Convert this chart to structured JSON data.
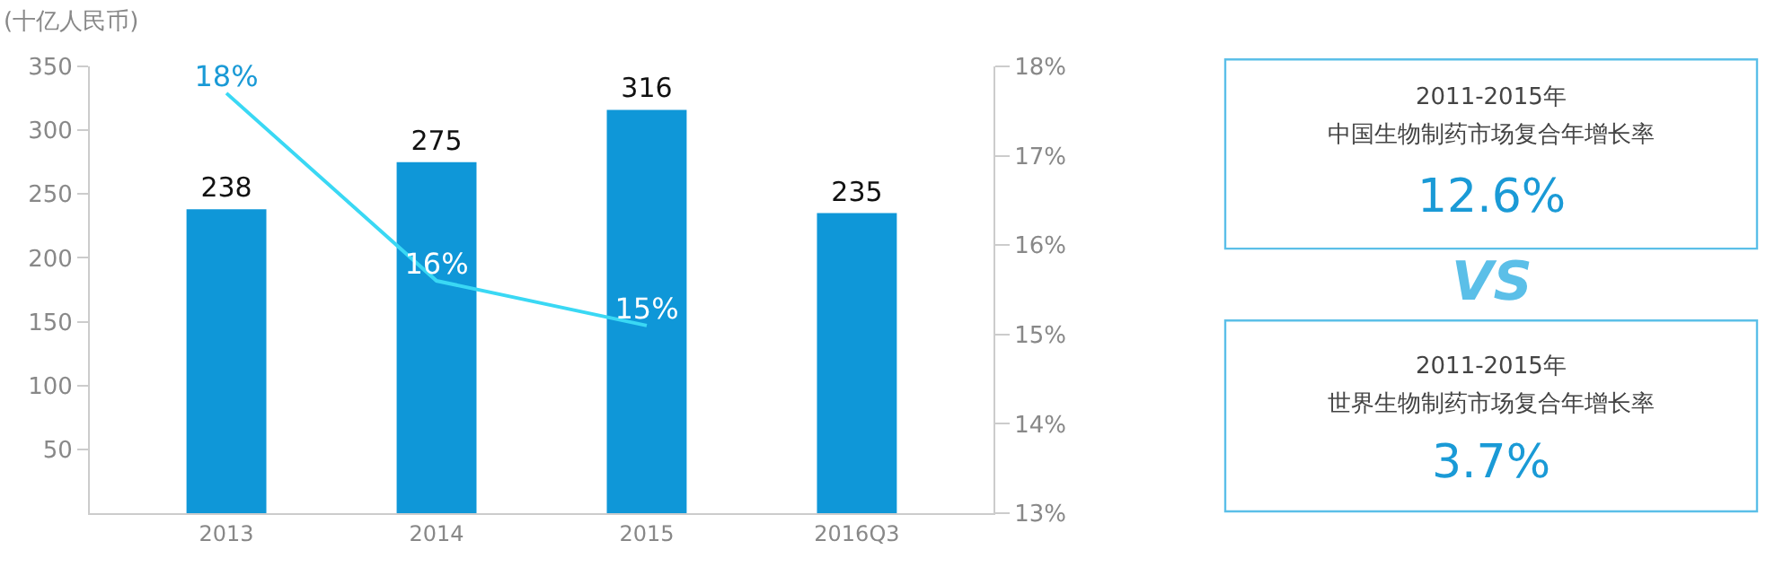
{
  "chart_data": [
    {
      "type": "bar",
      "ylabel": "(十亿人民币)",
      "categories": [
        "2013",
        "2014",
        "2015",
        "2016Q3"
      ],
      "series": [
        {
          "type": "bar",
          "color": "#0f97d8",
          "values": [
            238,
            275,
            316,
            235
          ]
        },
        {
          "type": "line",
          "axis": "y2",
          "color": "#3ad8f4",
          "values": [
            17.7,
            15.6,
            15.1,
            null
          ],
          "value_labels": [
            "18%",
            "16%",
            "15%",
            null
          ]
        }
      ],
      "data_labels": true,
      "ylim": [
        0,
        350
      ],
      "yticks": [
        50,
        100,
        150,
        200,
        250,
        300,
        350
      ],
      "y2lim": [
        13,
        18
      ],
      "y2ticks": [
        {
          "value": 13,
          "label": "13%"
        },
        {
          "value": 14,
          "label": "14%"
        },
        {
          "value": 15,
          "label": "15%"
        },
        {
          "value": 16,
          "label": "16%"
        },
        {
          "value": 17,
          "label": "17%"
        },
        {
          "value": 18,
          "label": "18%"
        }
      ],
      "marker": "none",
      "line_style": "solid"
    },
    {
      "type": "other",
      "annotations": [
        "2011-2015年",
        "中国生物制药市场复合年增长率",
        "12.6%",
        "VS",
        "2011-2015年",
        "世界生物制药市场复合年增长率",
        "3.7%"
      ]
    }
  ]
}
